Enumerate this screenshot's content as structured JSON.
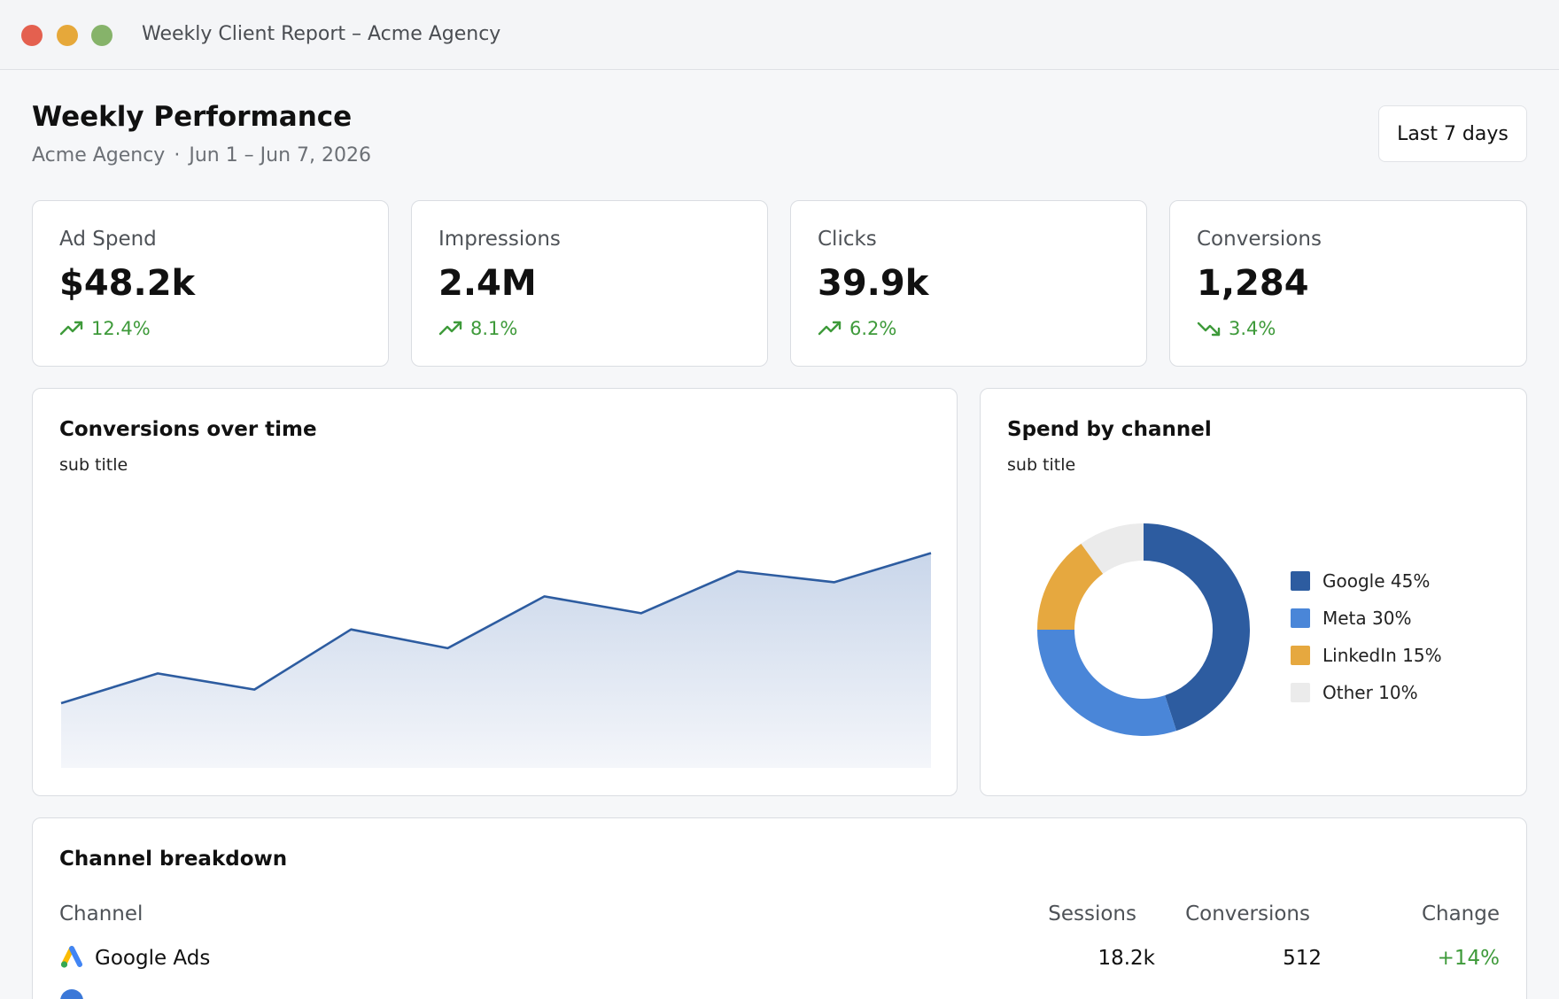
{
  "window": {
    "title": "Weekly Client Report – Acme Agency"
  },
  "header": {
    "title": "Weekly Performance",
    "agency": "Acme Agency",
    "separator": "·",
    "date_range": "Jun 1 – Jun 7, 2026",
    "range_button": "Last 7 days"
  },
  "colors": {
    "accent": "#2d5ca0",
    "positive": "#3e9a3a",
    "google": "#2d5ca0",
    "meta": "#4a86d8",
    "linkedin": "#e6a83f",
    "other": "#ebebeb"
  },
  "kpis": [
    {
      "label": "Ad Spend",
      "value": "$48.2k",
      "delta": "12.4%",
      "trend": "up",
      "icon": "trend-up-icon"
    },
    {
      "label": "Impressions",
      "value": "2.4M",
      "delta": "8.1%",
      "trend": "up",
      "icon": "trend-up-icon"
    },
    {
      "label": "Clicks",
      "value": "39.9k",
      "delta": "6.2%",
      "trend": "up",
      "icon": "trend-up-icon"
    },
    {
      "label": "Conversions",
      "value": "1,284",
      "delta": "3.4%",
      "trend": "down",
      "icon": "trend-down-icon"
    }
  ],
  "conversions_chart": {
    "title": "Conversions over time",
    "subtitle": "sub title"
  },
  "spend_chart": {
    "title": "Spend by channel",
    "subtitle": "sub title",
    "legend": [
      {
        "label": "Google 45%"
      },
      {
        "label": "Meta 30%"
      },
      {
        "label": "LinkedIn 15%"
      },
      {
        "label": "Other 10%"
      }
    ]
  },
  "chart_data": [
    {
      "type": "area",
      "title": "Conversions over time",
      "subtitle": "sub title",
      "x": [
        1,
        2,
        3,
        4,
        5,
        6,
        7,
        8,
        9,
        10
      ],
      "series": [
        {
          "values": [
            100,
            146,
            121,
            214,
            185,
            265,
            239,
            304,
            287,
            332
          ]
        }
      ],
      "ylim": [
        0,
        434
      ],
      "grid": false,
      "legend": false
    },
    {
      "type": "pie",
      "title": "Spend by channel",
      "subtitle": "sub title",
      "categories": [
        "Google",
        "Meta",
        "LinkedIn",
        "Other"
      ],
      "values": [
        45,
        30,
        15,
        10
      ],
      "donut": true,
      "legend": "right"
    }
  ],
  "breakdown": {
    "title": "Channel breakdown",
    "columns": [
      "Channel",
      "Sessions",
      "Conversions",
      "Change"
    ],
    "rows": [
      {
        "channel": "Google Ads",
        "icon": "google-ads-icon",
        "sessions": "18.2k",
        "conversions": "512",
        "change": "+14%"
      }
    ]
  }
}
